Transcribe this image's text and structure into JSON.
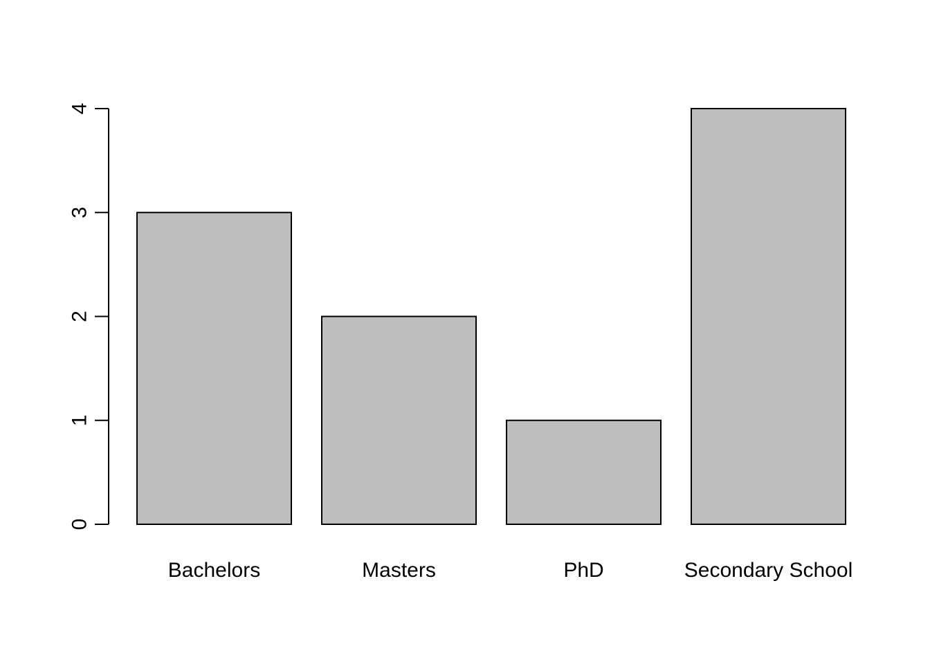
{
  "chart_data": {
    "type": "bar",
    "title": "",
    "xlabel": "",
    "ylabel": "",
    "categories": [
      "Bachelors",
      "Masters",
      "PhD",
      "Secondary School"
    ],
    "values": [
      3,
      2,
      1,
      4
    ],
    "ylim": [
      0,
      4
    ],
    "yticks": [
      "0",
      "1",
      "2",
      "3",
      "4"
    ],
    "grid": false,
    "legend": "none",
    "bar_color": "#bebebe",
    "edge_color": "#000000"
  }
}
